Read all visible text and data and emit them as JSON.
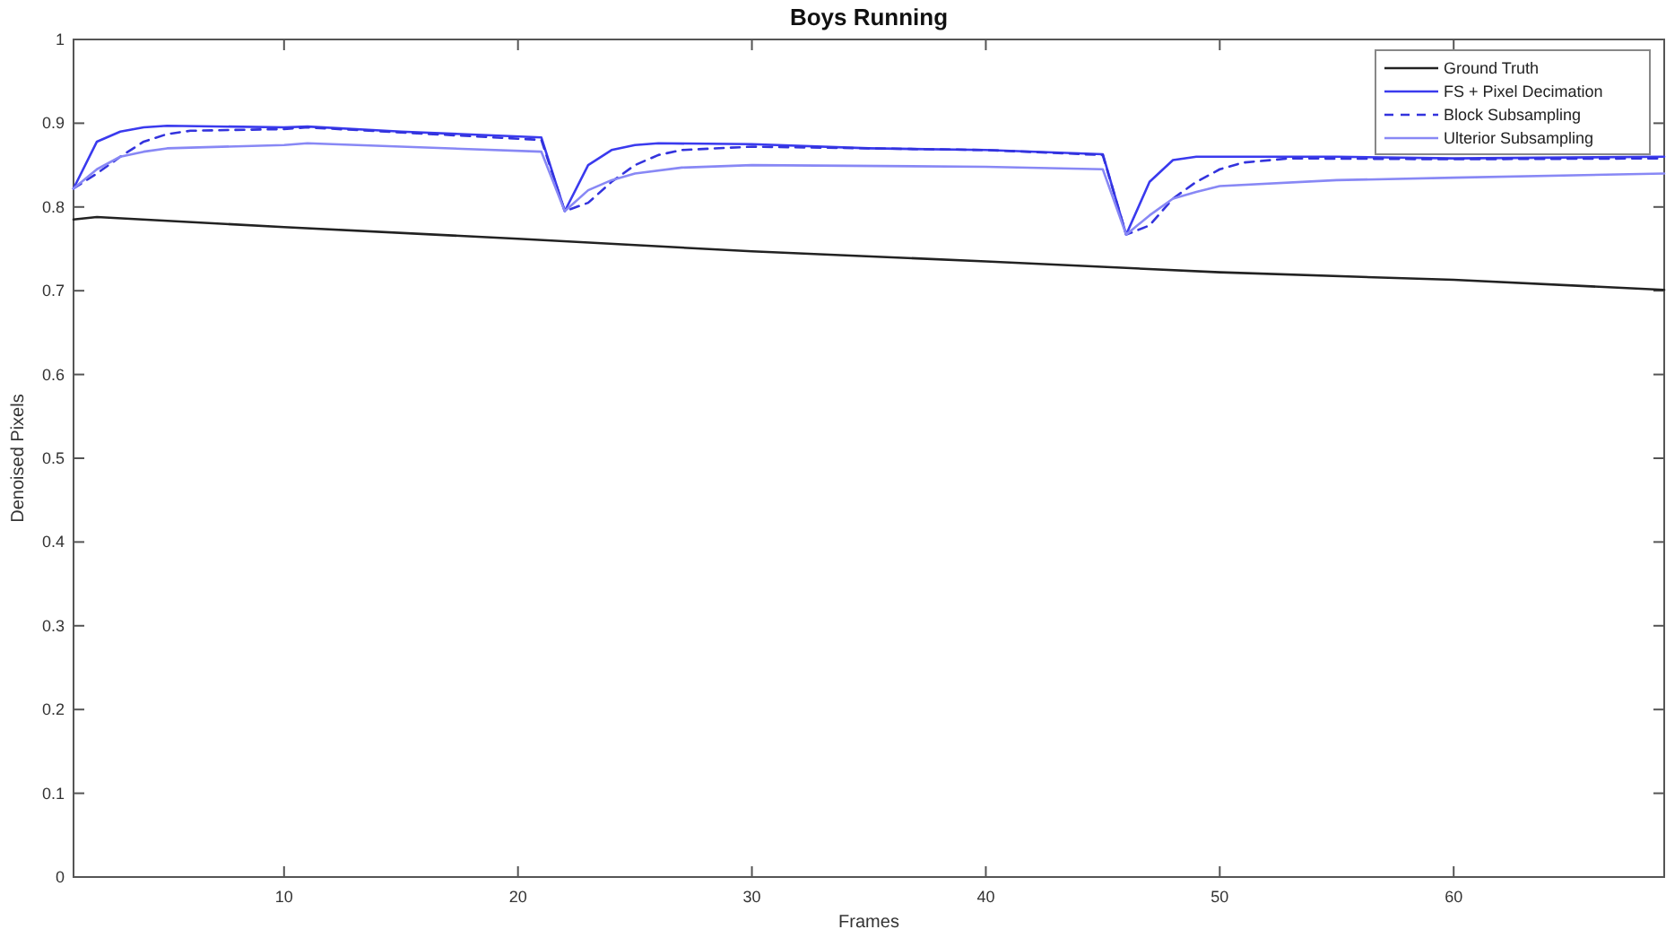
{
  "chart_data": {
    "type": "line",
    "title": "Boys Running",
    "xlabel": "Frames",
    "ylabel": "Denoised Pixels",
    "xlim": [
      1,
      69
    ],
    "xticks": [
      10,
      20,
      30,
      40,
      50,
      60
    ],
    "ylim": [
      0,
      1
    ],
    "yticks": [
      0,
      0.1,
      0.2,
      0.3,
      0.4,
      0.5,
      0.6,
      0.7,
      0.8,
      0.9,
      1
    ],
    "grid": false,
    "legend": "top right",
    "marker": "none",
    "series": [
      {
        "name": "Ground Truth",
        "color": "#222222",
        "line_style": "solid",
        "x": [
          1,
          2,
          10,
          20,
          30,
          40,
          50,
          60,
          69
        ],
        "values": [
          0.785,
          0.788,
          0.776,
          0.762,
          0.747,
          0.735,
          0.722,
          0.713,
          0.701
        ]
      },
      {
        "name": "FS + Pixel Decimation",
        "color": "#3a3aee",
        "line_style": "solid",
        "x": [
          1,
          2,
          3,
          4,
          5,
          10,
          11,
          15,
          21,
          22,
          23,
          24,
          25,
          26,
          30,
          35,
          40,
          45,
          46,
          47,
          48,
          49,
          55,
          60,
          69
        ],
        "values": [
          0.822,
          0.878,
          0.89,
          0.895,
          0.897,
          0.895,
          0.896,
          0.89,
          0.883,
          0.795,
          0.85,
          0.868,
          0.874,
          0.876,
          0.875,
          0.87,
          0.868,
          0.863,
          0.767,
          0.83,
          0.856,
          0.86,
          0.86,
          0.858,
          0.86
        ]
      },
      {
        "name": "Block Subsampling",
        "color": "#3333dd",
        "line_style": "dashed",
        "x": [
          1,
          2,
          3,
          4,
          5,
          6,
          10,
          11,
          15,
          21,
          22,
          23,
          24,
          25,
          26,
          27,
          30,
          40,
          45,
          46,
          47,
          48,
          49,
          50,
          51,
          53,
          60,
          69
        ],
        "values": [
          0.822,
          0.84,
          0.86,
          0.878,
          0.887,
          0.891,
          0.893,
          0.895,
          0.889,
          0.88,
          0.795,
          0.805,
          0.83,
          0.85,
          0.862,
          0.868,
          0.872,
          0.868,
          0.862,
          0.767,
          0.778,
          0.81,
          0.83,
          0.845,
          0.853,
          0.858,
          0.857,
          0.858
        ]
      },
      {
        "name": "Ulterior Subsampling",
        "color": "#8888f5",
        "line_style": "solid",
        "x": [
          1,
          2,
          3,
          4,
          5,
          10,
          11,
          15,
          21,
          22,
          23,
          24,
          25,
          27,
          30,
          40,
          45,
          46,
          47,
          48,
          49,
          50,
          55,
          60,
          69
        ],
        "values": [
          0.822,
          0.845,
          0.86,
          0.866,
          0.87,
          0.874,
          0.876,
          0.872,
          0.866,
          0.795,
          0.82,
          0.832,
          0.84,
          0.847,
          0.85,
          0.848,
          0.845,
          0.767,
          0.79,
          0.81,
          0.818,
          0.825,
          0.832,
          0.835,
          0.84
        ]
      }
    ]
  }
}
